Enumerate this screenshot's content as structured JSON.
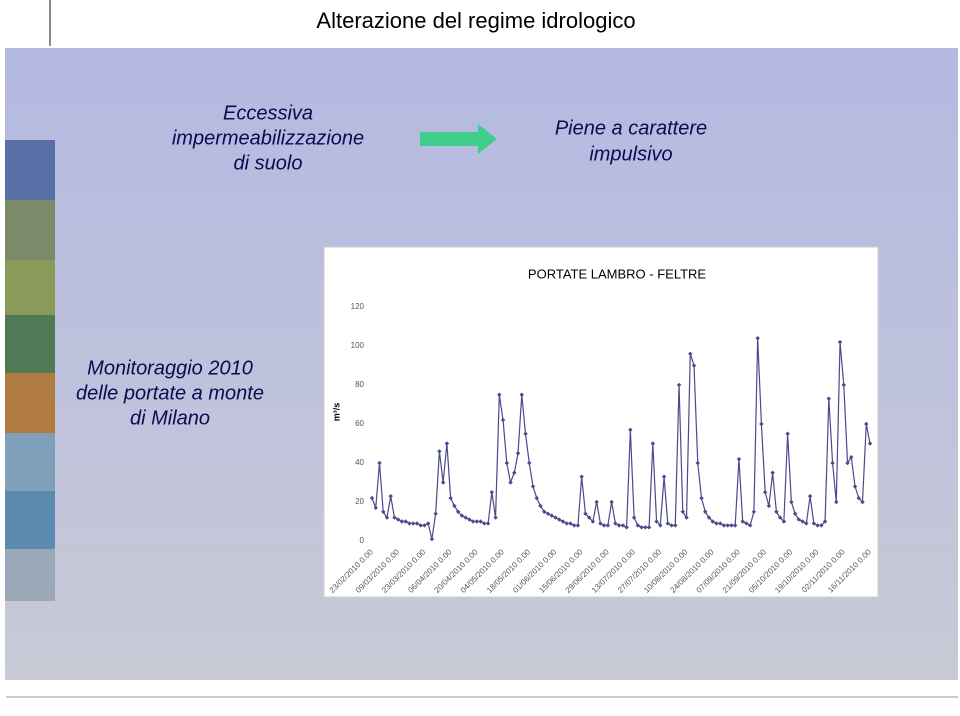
{
  "slide": {
    "title": "Alterazione del regime idrologico",
    "cause": [
      "Eccessiva",
      "impermeabilizzazione",
      "di suolo"
    ],
    "effect": [
      "Piene a carattere",
      "impulsivo"
    ],
    "monitoring": [
      "Monitoraggio 2010",
      "delle portate a monte",
      "di Milano"
    ]
  },
  "chart_data": {
    "type": "line",
    "title": "PORTATE LAMBRO - FELTRE",
    "y_label": "m³/s",
    "categories": [
      "23/02/2010 0.00",
      null,
      null,
      null,
      null,
      null,
      null,
      "09/03/2010 0.00",
      null,
      null,
      null,
      null,
      null,
      null,
      "23/03/2010 0.00",
      null,
      null,
      null,
      null,
      null,
      null,
      "06/04/2010 0.00",
      null,
      null,
      null,
      null,
      null,
      null,
      "20/04/2010 0.00",
      null,
      null,
      null,
      null,
      null,
      null,
      "04/05/2010 0.00",
      null,
      null,
      null,
      null,
      null,
      null,
      "18/05/2010 0.00",
      null,
      null,
      null,
      null,
      null,
      null,
      "01/06/2010 0.00",
      null,
      null,
      null,
      null,
      null,
      null,
      "15/06/2010 0.00",
      null,
      null,
      null,
      null,
      null,
      null,
      "29/06/2010 0.00",
      null,
      null,
      null,
      null,
      null,
      null,
      "13/07/2010 0.00",
      null,
      null,
      null,
      null,
      null,
      null,
      "27/07/2010 0.00",
      null,
      null,
      null,
      null,
      null,
      null,
      "10/08/2010 0.00",
      null,
      null,
      null,
      null,
      null,
      null,
      "24/08/2010 0.00",
      null,
      null,
      null,
      null,
      null,
      null,
      "07/09/2010 0.00",
      null,
      null,
      null,
      null,
      null,
      null,
      "21/09/2010 0.00",
      null,
      null,
      null,
      null,
      null,
      null,
      "05/10/2010 0.00",
      null,
      null,
      null,
      null,
      null,
      null,
      "19/10/2010 0.00",
      null,
      null,
      null,
      null,
      null,
      null,
      "02/11/2010 0.00",
      null,
      null,
      null,
      null,
      null,
      null,
      "16/11/2010 0.00"
    ],
    "values": [
      22,
      17,
      40,
      15,
      12,
      23,
      12,
      11,
      10,
      10,
      9,
      9,
      9,
      8,
      8,
      9,
      1,
      14,
      46,
      30,
      50,
      22,
      18,
      15,
      13,
      12,
      11,
      10,
      10,
      10,
      9,
      9,
      25,
      12,
      75,
      62,
      40,
      30,
      35,
      45,
      75,
      55,
      40,
      28,
      22,
      18,
      15,
      14,
      13,
      12,
      11,
      10,
      9,
      9,
      8,
      8,
      33,
      14,
      12,
      10,
      20,
      9,
      8,
      8,
      20,
      9,
      8,
      8,
      7,
      57,
      12,
      8,
      7,
      7,
      7,
      50,
      10,
      8,
      33,
      9,
      8,
      8,
      80,
      15,
      12,
      96,
      90,
      40,
      22,
      15,
      12,
      10,
      9,
      9,
      8,
      8,
      8,
      8,
      42,
      10,
      9,
      8,
      15,
      104,
      60,
      25,
      18,
      35,
      15,
      12,
      10,
      55,
      20,
      14,
      11,
      10,
      9,
      23,
      9,
      8,
      8,
      10,
      73,
      40,
      20,
      102,
      80,
      40,
      43,
      28,
      22,
      20,
      60,
      50
    ],
    "color": "#4a4a8c",
    "ylim": [
      0,
      120
    ],
    "yticks": [
      0,
      20,
      40,
      60,
      80,
      100,
      120
    ],
    "grid": false
  }
}
